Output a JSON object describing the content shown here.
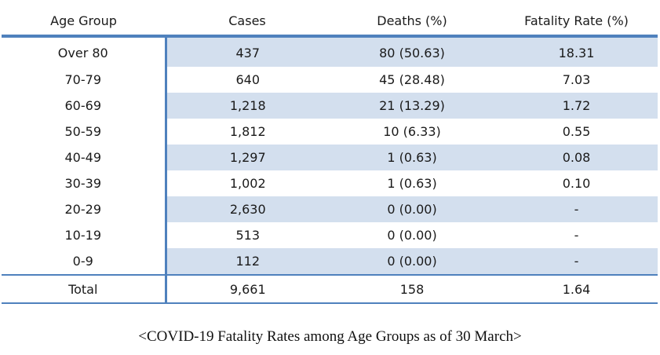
{
  "table": {
    "headers": [
      "Age Group",
      "Cases",
      "Deaths (%)",
      "Fatality Rate (%)"
    ],
    "rows": [
      [
        "Over 80",
        "437",
        "80 (50.63)",
        "18.31"
      ],
      [
        "70-79",
        "640",
        "45 (28.48)",
        "7.03"
      ],
      [
        "60-69",
        "1,218",
        "21 (13.29)",
        "1.72"
      ],
      [
        "50-59",
        "1,812",
        "10 (6.33)",
        "0.55"
      ],
      [
        "40-49",
        "1,297",
        "1 (0.63)",
        "0.08"
      ],
      [
        "30-39",
        "1,002",
        "1 (0.63)",
        "0.10"
      ],
      [
        "20-29",
        "2,630",
        "0 (0.00)",
        "-"
      ],
      [
        "10-19",
        "513",
        "0 (0.00)",
        "-"
      ],
      [
        "0-9",
        "112",
        "0 (0.00)",
        "-"
      ]
    ],
    "total": [
      "Total",
      "9,661",
      "158",
      "1.64"
    ]
  },
  "caption": "<COVID-19 Fatality Rates among Age Groups as of 30 March>",
  "colors": {
    "accent": "#4f81bd",
    "row_shade": "#d3dfee"
  }
}
